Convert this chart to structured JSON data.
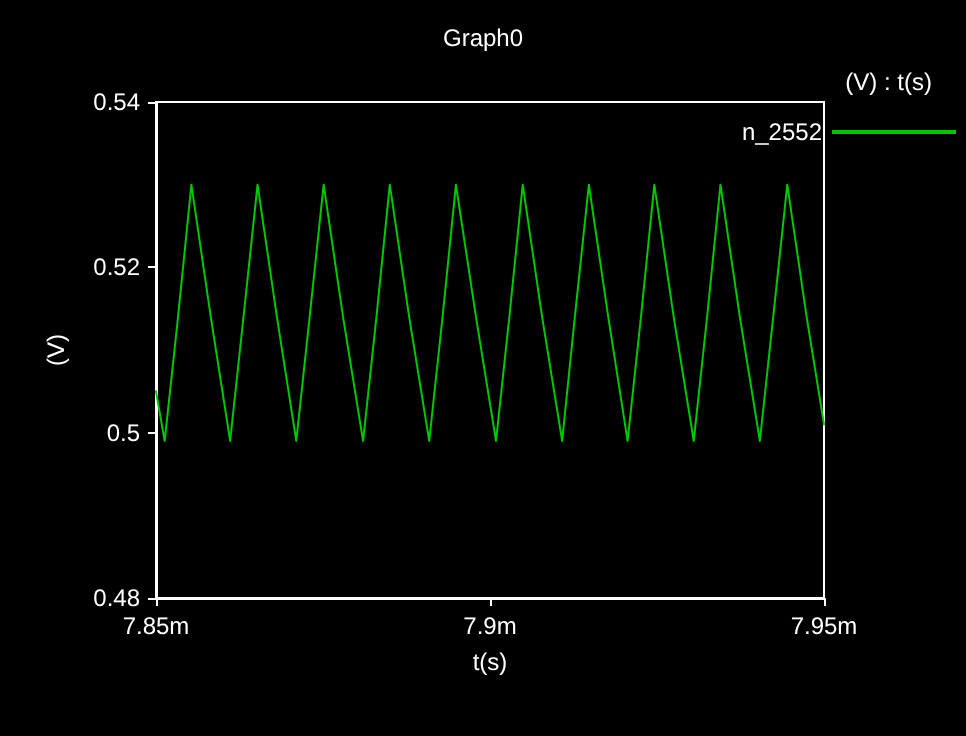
{
  "chart_data": {
    "type": "line",
    "title": "Graph0",
    "xlabel": "t(s)",
    "ylabel": "(V)",
    "legend_title": "(V) : t(s)",
    "x": [
      7.85,
      7.8513,
      7.8533,
      7.8553,
      7.8582,
      7.8611,
      7.8631,
      7.8652,
      7.8681,
      7.871,
      7.873,
      7.8751,
      7.878,
      7.881,
      7.883,
      7.885,
      7.8879,
      7.8909,
      7.8929,
      7.8949,
      7.8979,
      7.9009,
      7.9029,
      7.9049,
      7.9078,
      7.9108,
      7.9127,
      7.9148,
      7.9177,
      7.9206,
      7.9226,
      7.9246,
      7.9275,
      7.9305,
      7.9325,
      7.9345,
      7.9374,
      7.9404,
      7.9424,
      7.9445,
      7.9474,
      7.95
    ],
    "series": [
      {
        "name": "n_2552",
        "color": "#00c800",
        "values": [
          0.505,
          0.499,
          0.514,
          0.53,
          0.514,
          0.499,
          0.514,
          0.53,
          0.514,
          0.499,
          0.514,
          0.53,
          0.514,
          0.499,
          0.514,
          0.53,
          0.514,
          0.499,
          0.514,
          0.53,
          0.514,
          0.499,
          0.514,
          0.53,
          0.514,
          0.499,
          0.514,
          0.53,
          0.514,
          0.499,
          0.514,
          0.53,
          0.514,
          0.499,
          0.514,
          0.53,
          0.514,
          0.499,
          0.514,
          0.53,
          0.514,
          0.501
        ]
      }
    ],
    "xlim": [
      7.85,
      7.95
    ],
    "xticks": [
      {
        "value": 7.85,
        "label": "7.85m"
      },
      {
        "value": 7.9,
        "label": "7.9m"
      },
      {
        "value": 7.95,
        "label": "7.95m"
      }
    ],
    "ylim": [
      0.48,
      0.54
    ],
    "yticks": [
      0.48,
      0.5,
      0.52,
      0.54
    ],
    "grid": false,
    "legend": "right",
    "marker": "none",
    "line_style": "solid"
  }
}
